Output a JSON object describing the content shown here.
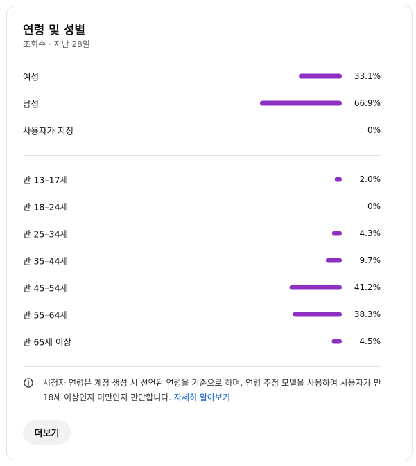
{
  "header": {
    "title": "연령 및 성별",
    "subtitle": "조회수 · 지난 28일"
  },
  "gender": [
    {
      "label": "여성",
      "value": 33.1,
      "value_label": "33.1%"
    },
    {
      "label": "남성",
      "value": 66.9,
      "value_label": "66.9%"
    },
    {
      "label": "사용자가 지정",
      "value": 0,
      "value_label": "0%"
    }
  ],
  "age": [
    {
      "label": "만 13–17세",
      "value": 2.0,
      "value_label": "2.0%"
    },
    {
      "label": "만 18–24세",
      "value": 0,
      "value_label": "0%"
    },
    {
      "label": "만 25–34세",
      "value": 4.3,
      "value_label": "4.3%"
    },
    {
      "label": "만 35–44세",
      "value": 9.7,
      "value_label": "9.7%"
    },
    {
      "label": "만 45–54세",
      "value": 41.2,
      "value_label": "41.2%"
    },
    {
      "label": "만 55–64세",
      "value": 38.3,
      "value_label": "38.3%"
    },
    {
      "label": "만 65세 이상",
      "value": 4.5,
      "value_label": "4.5%"
    }
  ],
  "note": {
    "text": "시청자 연령은 계정 생성 시 선언된 연령을 기준으로 하며, 연령 추정 모델을 사용하여 사용자가 만 18세 이상인지 미만인지 판단합니다.",
    "link": "자세히 알아보기"
  },
  "button": "더보기"
}
